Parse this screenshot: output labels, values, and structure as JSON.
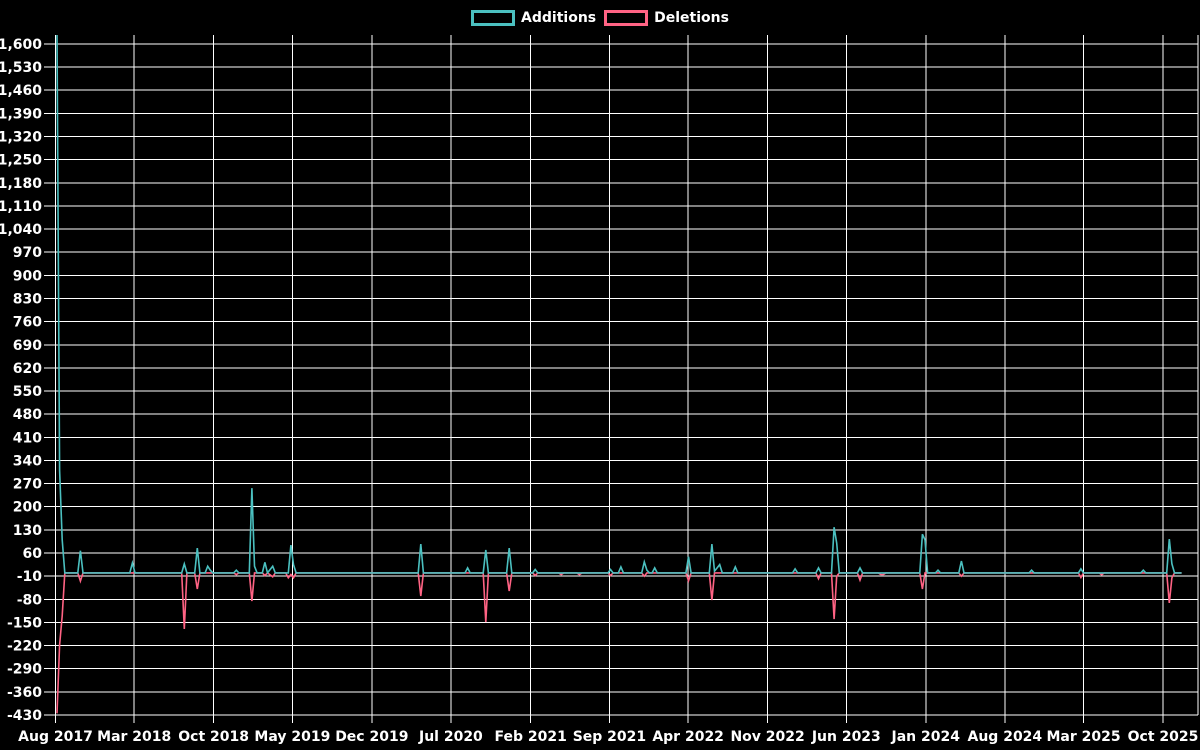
{
  "legend": {
    "items": [
      {
        "label": "Additions",
        "color": "#4bc0c0"
      },
      {
        "label": "Deletions",
        "color": "#ff6384"
      }
    ]
  },
  "chart_data": {
    "type": "line",
    "title": "",
    "colors": {
      "background": "#000000",
      "grid": "#ffffff",
      "text": "#ffffff",
      "additions": "#4bc0c0",
      "deletions": "#ff6384"
    },
    "x_axis": {
      "tick_labels": [
        "Aug 2017",
        "Mar 2018",
        "Oct 2018",
        "May 2019",
        "Dec 2019",
        "Jul 2020",
        "Feb 2021",
        "Sep 2021",
        "Apr 2022",
        "Nov 2022",
        "Jun 2023",
        "Jan 2024",
        "Aug 2024",
        "Mar 2025",
        "Oct 2025"
      ],
      "tick_interval_months": 7
    },
    "y_axis": {
      "min": -430,
      "max": 1627,
      "tick_values": [
        1600,
        1530,
        1460,
        1390,
        1320,
        1250,
        1180,
        1110,
        1040,
        970,
        900,
        830,
        760,
        690,
        620,
        550,
        480,
        410,
        340,
        270,
        200,
        130,
        60,
        -10,
        -80,
        -150,
        -220,
        -290,
        -360,
        -430
      ],
      "tick_labels": [
        "1,600",
        "1,530",
        "1,460",
        "1,390",
        "1,320",
        "1,250",
        "1,180",
        "1,110",
        "1,040",
        "970",
        "900",
        "830",
        "760",
        "690",
        "620",
        "550",
        "480",
        "410",
        "340",
        "270",
        "200",
        "130",
        "60",
        "-10",
        "-80",
        "-150",
        "-220",
        "-290",
        "-360",
        "-430"
      ]
    },
    "grid": true,
    "legend_position": "top",
    "series": [
      {
        "name": "Additions",
        "color": "#4bc0c0",
        "points": [
          [
            "2017-08-05",
            1627
          ],
          [
            "2017-08-12",
            310
          ],
          [
            "2017-08-19",
            100
          ],
          [
            "2017-08-26",
            0
          ],
          [
            "2017-09-30",
            0
          ],
          [
            "2017-10-07",
            67
          ],
          [
            "2017-10-14",
            0
          ],
          [
            "2018-02-17",
            0
          ],
          [
            "2018-02-24",
            30
          ],
          [
            "2018-03-03",
            0
          ],
          [
            "2018-07-07",
            0
          ],
          [
            "2018-07-14",
            27
          ],
          [
            "2018-07-21",
            0
          ],
          [
            "2018-08-11",
            0
          ],
          [
            "2018-08-18",
            75
          ],
          [
            "2018-08-25",
            0
          ],
          [
            "2018-09-08",
            0
          ],
          [
            "2018-09-15",
            20
          ],
          [
            "2018-09-22",
            8
          ],
          [
            "2018-09-29",
            0
          ],
          [
            "2018-11-24",
            0
          ],
          [
            "2018-12-01",
            8
          ],
          [
            "2018-12-08",
            0
          ],
          [
            "2019-01-05",
            0
          ],
          [
            "2019-01-12",
            256
          ],
          [
            "2019-01-19",
            20
          ],
          [
            "2019-01-26",
            0
          ],
          [
            "2019-02-09",
            0
          ],
          [
            "2019-02-16",
            32
          ],
          [
            "2019-02-23",
            0
          ],
          [
            "2019-03-09",
            20
          ],
          [
            "2019-03-16",
            0
          ],
          [
            "2019-04-20",
            0
          ],
          [
            "2019-04-27",
            84
          ],
          [
            "2019-05-04",
            25
          ],
          [
            "2019-05-11",
            0
          ],
          [
            "2020-04-04",
            0
          ],
          [
            "2020-04-11",
            87
          ],
          [
            "2020-04-18",
            0
          ],
          [
            "2020-08-08",
            0
          ],
          [
            "2020-08-15",
            15
          ],
          [
            "2020-08-22",
            0
          ],
          [
            "2020-09-26",
            0
          ],
          [
            "2020-10-03",
            69
          ],
          [
            "2020-10-10",
            0
          ],
          [
            "2020-11-28",
            0
          ],
          [
            "2020-12-05",
            75
          ],
          [
            "2020-12-12",
            0
          ],
          [
            "2021-02-06",
            0
          ],
          [
            "2021-02-13",
            10
          ],
          [
            "2021-02-20",
            0
          ],
          [
            "2021-08-28",
            0
          ],
          [
            "2021-09-04",
            10
          ],
          [
            "2021-09-11",
            0
          ],
          [
            "2021-09-25",
            0
          ],
          [
            "2021-10-02",
            18
          ],
          [
            "2021-10-09",
            0
          ],
          [
            "2021-11-27",
            0
          ],
          [
            "2021-12-04",
            33
          ],
          [
            "2021-12-11",
            8
          ],
          [
            "2021-12-18",
            0
          ],
          [
            "2021-12-25",
            0
          ],
          [
            "2022-01-01",
            15
          ],
          [
            "2022-01-08",
            0
          ],
          [
            "2022-03-26",
            0
          ],
          [
            "2022-04-02",
            49
          ],
          [
            "2022-04-09",
            0
          ],
          [
            "2022-05-28",
            0
          ],
          [
            "2022-06-04",
            87
          ],
          [
            "2022-06-11",
            5
          ],
          [
            "2022-06-25",
            25
          ],
          [
            "2022-07-02",
            0
          ],
          [
            "2022-07-30",
            0
          ],
          [
            "2022-08-06",
            18
          ],
          [
            "2022-08-13",
            0
          ],
          [
            "2023-01-07",
            0
          ],
          [
            "2023-01-14",
            12
          ],
          [
            "2023-01-21",
            0
          ],
          [
            "2023-03-11",
            0
          ],
          [
            "2023-03-18",
            15
          ],
          [
            "2023-03-25",
            0
          ],
          [
            "2023-04-22",
            0
          ],
          [
            "2023-04-29",
            138
          ],
          [
            "2023-05-06",
            90
          ],
          [
            "2023-05-13",
            0
          ],
          [
            "2023-07-01",
            0
          ],
          [
            "2023-07-08",
            15
          ],
          [
            "2023-07-15",
            0
          ],
          [
            "2023-12-16",
            0
          ],
          [
            "2023-12-23",
            117
          ],
          [
            "2023-12-30",
            100
          ],
          [
            "2024-01-06",
            0
          ],
          [
            "2024-01-27",
            0
          ],
          [
            "2024-02-03",
            8
          ],
          [
            "2024-02-10",
            0
          ],
          [
            "2024-03-30",
            0
          ],
          [
            "2024-04-06",
            36
          ],
          [
            "2024-04-13",
            0
          ],
          [
            "2024-10-05",
            0
          ],
          [
            "2024-10-12",
            8
          ],
          [
            "2024-10-19",
            0
          ],
          [
            "2025-02-15",
            0
          ],
          [
            "2025-02-22",
            12
          ],
          [
            "2025-03-01",
            0
          ],
          [
            "2025-08-02",
            0
          ],
          [
            "2025-08-09",
            8
          ],
          [
            "2025-08-16",
            0
          ],
          [
            "2025-10-11",
            0
          ],
          [
            "2025-10-18",
            102
          ],
          [
            "2025-10-25",
            27
          ],
          [
            "2025-11-01",
            0
          ],
          [
            "2025-11-20",
            0
          ]
        ]
      },
      {
        "name": "Deletions",
        "color": "#ff6384",
        "points": [
          [
            "2017-08-05",
            -425
          ],
          [
            "2017-08-12",
            -218
          ],
          [
            "2017-08-19",
            -130
          ],
          [
            "2017-08-26",
            0
          ],
          [
            "2017-09-30",
            0
          ],
          [
            "2017-10-07",
            -25
          ],
          [
            "2017-10-14",
            0
          ],
          [
            "2018-07-07",
            0
          ],
          [
            "2018-07-14",
            -170
          ],
          [
            "2018-07-21",
            0
          ],
          [
            "2018-08-11",
            0
          ],
          [
            "2018-08-18",
            -49
          ],
          [
            "2018-08-25",
            0
          ],
          [
            "2018-11-24",
            0
          ],
          [
            "2018-12-01",
            -5
          ],
          [
            "2018-12-08",
            0
          ],
          [
            "2019-01-05",
            0
          ],
          [
            "2019-01-12",
            -85
          ],
          [
            "2019-01-19",
            0
          ],
          [
            "2019-02-09",
            0
          ],
          [
            "2019-02-16",
            -8
          ],
          [
            "2019-02-23",
            0
          ],
          [
            "2019-03-09",
            -12
          ],
          [
            "2019-03-16",
            0
          ],
          [
            "2019-04-13",
            0
          ],
          [
            "2019-04-20",
            -15
          ],
          [
            "2019-04-27",
            -5
          ],
          [
            "2019-05-04",
            -15
          ],
          [
            "2019-05-11",
            0
          ],
          [
            "2020-04-04",
            0
          ],
          [
            "2020-04-11",
            -70
          ],
          [
            "2020-04-18",
            0
          ],
          [
            "2020-09-26",
            0
          ],
          [
            "2020-10-03",
            -149
          ],
          [
            "2020-10-10",
            0
          ],
          [
            "2020-11-28",
            0
          ],
          [
            "2020-12-05",
            -55
          ],
          [
            "2020-12-12",
            0
          ],
          [
            "2021-02-06",
            0
          ],
          [
            "2021-02-13",
            -8
          ],
          [
            "2021-02-20",
            0
          ],
          [
            "2021-04-17",
            0
          ],
          [
            "2021-04-24",
            -5
          ],
          [
            "2021-05-01",
            0
          ],
          [
            "2021-06-05",
            0
          ],
          [
            "2021-06-12",
            -5
          ],
          [
            "2021-06-19",
            0
          ],
          [
            "2021-08-28",
            0
          ],
          [
            "2021-09-04",
            -8
          ],
          [
            "2021-09-11",
            0
          ],
          [
            "2021-11-27",
            0
          ],
          [
            "2021-12-04",
            -10
          ],
          [
            "2021-12-11",
            0
          ],
          [
            "2022-03-26",
            0
          ],
          [
            "2022-04-02",
            -24
          ],
          [
            "2022-04-09",
            0
          ],
          [
            "2022-05-28",
            0
          ],
          [
            "2022-06-04",
            -82
          ],
          [
            "2022-06-11",
            0
          ],
          [
            "2023-03-11",
            0
          ],
          [
            "2023-03-18",
            -18
          ],
          [
            "2023-03-25",
            0
          ],
          [
            "2023-04-22",
            0
          ],
          [
            "2023-04-29",
            -140
          ],
          [
            "2023-05-06",
            -10
          ],
          [
            "2023-05-13",
            0
          ],
          [
            "2023-07-01",
            0
          ],
          [
            "2023-07-08",
            -22
          ],
          [
            "2023-07-15",
            0
          ],
          [
            "2023-08-26",
            0
          ],
          [
            "2023-09-02",
            -5
          ],
          [
            "2023-09-09",
            -5
          ],
          [
            "2023-09-16",
            0
          ],
          [
            "2023-12-16",
            0
          ],
          [
            "2023-12-23",
            -49
          ],
          [
            "2023-12-30",
            0
          ],
          [
            "2024-03-30",
            0
          ],
          [
            "2024-04-06",
            -10
          ],
          [
            "2024-04-13",
            0
          ],
          [
            "2025-02-15",
            0
          ],
          [
            "2025-02-22",
            -14
          ],
          [
            "2025-03-01",
            0
          ],
          [
            "2025-04-12",
            0
          ],
          [
            "2025-04-19",
            -6
          ],
          [
            "2025-04-26",
            0
          ],
          [
            "2025-10-11",
            0
          ],
          [
            "2025-10-18",
            -91
          ],
          [
            "2025-10-25",
            -15
          ],
          [
            "2025-11-01",
            0
          ],
          [
            "2025-11-20",
            0
          ]
        ]
      }
    ]
  }
}
